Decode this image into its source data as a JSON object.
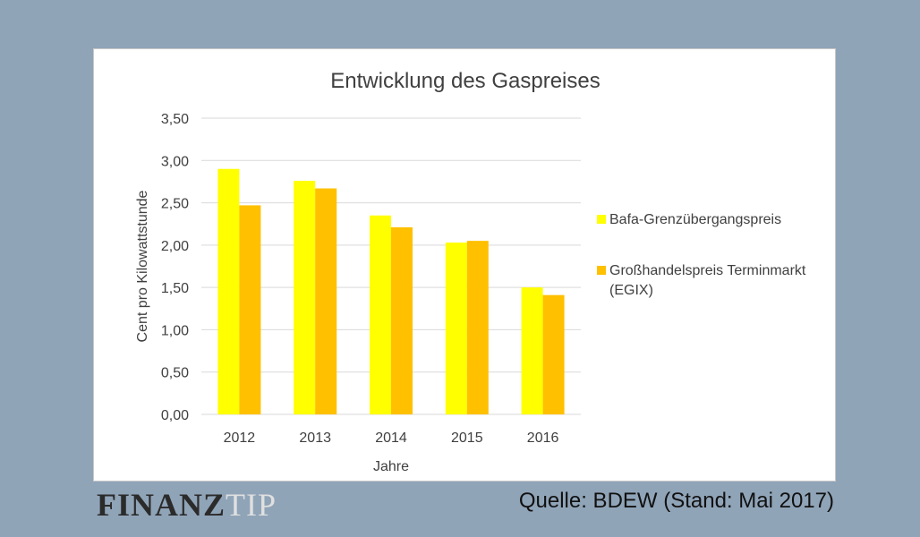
{
  "chart_data": {
    "type": "bar",
    "title": "Entwicklung des Gaspreises",
    "xlabel": "Jahre",
    "ylabel": "Cent pro Kilowattstunde",
    "categories": [
      "2012",
      "2013",
      "2014",
      "2015",
      "2016"
    ],
    "yticks": [
      "0,00",
      "0,50",
      "1,00",
      "1,50",
      "2,00",
      "2,50",
      "3,00",
      "3,50"
    ],
    "ylim": [
      0,
      3.5
    ],
    "grid": true,
    "legend_position": "right",
    "series": [
      {
        "name": "Bafa-Grenzübergangspreis",
        "values": [
          2.9,
          2.76,
          2.35,
          2.03,
          1.5
        ],
        "color": "#ffff00"
      },
      {
        "name": "Großhandelspreis Terminmarkt (EGIX)",
        "name_lines": [
          "Großhandelspreis Terminmarkt",
          "(EGIX)"
        ],
        "values": [
          2.47,
          2.67,
          2.21,
          2.05,
          1.41
        ],
        "color": "#ffc000"
      }
    ]
  },
  "footer": {
    "logo_part1": "FINANZ",
    "logo_part2": "TIP",
    "source": "Quelle: BDEW (Stand: Mai 2017)"
  }
}
